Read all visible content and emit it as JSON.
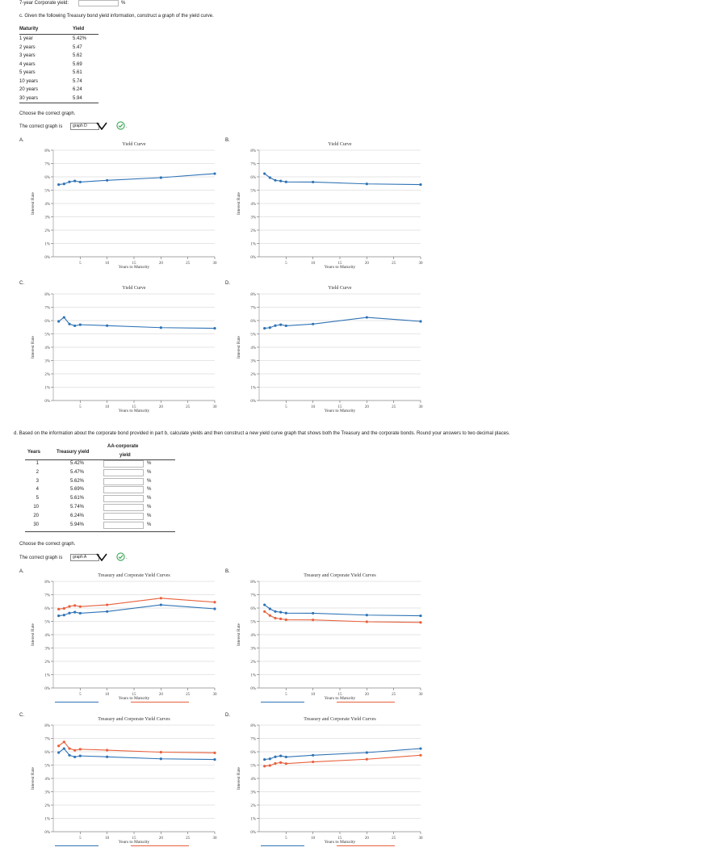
{
  "top": {
    "label": "7-year Corporate yield:",
    "value": "",
    "unit": "%"
  },
  "part_c": {
    "prompt": "c. Given the following Treasury bond yield information, construct a graph of the yield curve.",
    "table_headers": [
      "Maturity",
      "Yield"
    ],
    "rows": [
      {
        "maturity": "1 year",
        "yield": "5.42%"
      },
      {
        "maturity": "2 years",
        "yield": "5.47"
      },
      {
        "maturity": "3 years",
        "yield": "5.62"
      },
      {
        "maturity": "4 years",
        "yield": "5.69"
      },
      {
        "maturity": "5 years",
        "yield": "5.61"
      },
      {
        "maturity": "10 years",
        "yield": "5.74"
      },
      {
        "maturity": "20 years",
        "yield": "6.24"
      },
      {
        "maturity": "30 years",
        "yield": "5.94"
      }
    ],
    "choose_text": "Choose the correct graph.",
    "answer_label": "The correct graph is",
    "answer_value": "graph D",
    "options": [
      "A.",
      "B.",
      "C.",
      "D."
    ]
  },
  "part_d": {
    "prompt": "d. Based on the information about the corporate bond provided in part b, calculate yields and then construct a new yield curve graph that shows both the Treasury and the corporate bonds. Round your answers to two decimal places.",
    "headers": [
      "Years",
      "Treasury yield",
      "AA-corporate",
      "yield"
    ],
    "rows": [
      {
        "years": "1",
        "treasury": "5.42%",
        "corp": "",
        "unit": "%"
      },
      {
        "years": "2",
        "treasury": "5.47%",
        "corp": "",
        "unit": "%"
      },
      {
        "years": "3",
        "treasury": "5.62%",
        "corp": "",
        "unit": "%"
      },
      {
        "years": "4",
        "treasury": "5.69%",
        "corp": "",
        "unit": "%"
      },
      {
        "years": "5",
        "treasury": "5.61%",
        "corp": "",
        "unit": "%"
      },
      {
        "years": "10",
        "treasury": "5.74%",
        "corp": "",
        "unit": "%"
      },
      {
        "years": "20",
        "treasury": "6.24%",
        "corp": "",
        "unit": "%"
      },
      {
        "years": "30",
        "treasury": "5.94%",
        "corp": "",
        "unit": "%"
      }
    ],
    "choose_text": "Choose the correct graph.",
    "answer_label": "The correct graph is",
    "answer_value": "graph A",
    "options": [
      "A.",
      "B.",
      "C.",
      "D."
    ]
  },
  "colors": {
    "treasury": "#2f73b5",
    "corporate": "#e8603c",
    "grid": "#dedede",
    "check": "#3aa655"
  },
  "chart_data": [
    {
      "id": "c-A",
      "type": "line",
      "title": "Yield Curve",
      "xlabel": "Years to Maturity",
      "ylabel": "Interest Rate",
      "xlim": [
        0,
        30
      ],
      "ylim": [
        0,
        8
      ],
      "xticks": [
        "5",
        "10",
        "15",
        "20",
        "25",
        "30"
      ],
      "yticks": [
        "0%",
        "1%",
        "2%",
        "3%",
        "4%",
        "5%",
        "6%",
        "7%",
        "8%"
      ],
      "x": [
        1,
        2,
        3,
        4,
        5,
        10,
        20,
        30
      ],
      "series": [
        {
          "values": [
            5.42,
            5.47,
            5.62,
            5.69,
            5.61,
            5.74,
            5.94,
            6.24
          ]
        }
      ]
    },
    {
      "id": "c-B",
      "type": "line",
      "title": "Yield Curve",
      "xlabel": "Years to Maturity",
      "ylabel": "Interest Rate",
      "xlim": [
        0,
        30
      ],
      "ylim": [
        0,
        8
      ],
      "xticks": [
        "5",
        "10",
        "15",
        "20",
        "25",
        "30"
      ],
      "yticks": [
        "0%",
        "1%",
        "2%",
        "3%",
        "4%",
        "5%",
        "6%",
        "7%",
        "8%"
      ],
      "x": [
        1,
        2,
        3,
        4,
        5,
        10,
        20,
        30
      ],
      "series": [
        {
          "values": [
            6.24,
            5.94,
            5.74,
            5.69,
            5.62,
            5.61,
            5.47,
            5.42
          ]
        }
      ]
    },
    {
      "id": "c-C",
      "type": "line",
      "title": "Yield Curve",
      "xlabel": "Years to Maturity",
      "ylabel": "Interest Rate",
      "xlim": [
        0,
        30
      ],
      "ylim": [
        0,
        8
      ],
      "xticks": [
        "5",
        "10",
        "15",
        "20",
        "25",
        "30"
      ],
      "yticks": [
        "0%",
        "1%",
        "2%",
        "3%",
        "4%",
        "5%",
        "6%",
        "7%",
        "8%"
      ],
      "x": [
        1,
        2,
        3,
        4,
        5,
        10,
        20,
        30
      ],
      "series": [
        {
          "values": [
            5.94,
            6.24,
            5.74,
            5.61,
            5.69,
            5.62,
            5.47,
            5.42
          ]
        }
      ]
    },
    {
      "id": "c-D",
      "type": "line",
      "title": "Yield Curve",
      "xlabel": "Years to Maturity",
      "ylabel": "Interest Rate",
      "xlim": [
        0,
        30
      ],
      "ylim": [
        0,
        8
      ],
      "xticks": [
        "5",
        "10",
        "15",
        "20",
        "25",
        "30"
      ],
      "yticks": [
        "0%",
        "1%",
        "2%",
        "3%",
        "4%",
        "5%",
        "6%",
        "7%",
        "8%"
      ],
      "x": [
        1,
        2,
        3,
        4,
        5,
        10,
        20,
        30
      ],
      "series": [
        {
          "values": [
            5.42,
            5.47,
            5.62,
            5.69,
            5.61,
            5.74,
            6.24,
            5.94
          ]
        }
      ]
    },
    {
      "id": "d-A",
      "type": "line",
      "title": "Treasury and Corporate Yield Curves",
      "xlabel": "Years to Maturity",
      "ylabel": "Interest Rate",
      "xlim": [
        0,
        30
      ],
      "ylim": [
        0,
        8
      ],
      "xticks": [
        "5",
        "10",
        "15",
        "20",
        "25",
        "30"
      ],
      "yticks": [
        "0%",
        "1%",
        "2%",
        "3%",
        "4%",
        "5%",
        "6%",
        "7%",
        "8%"
      ],
      "x": [
        1,
        2,
        3,
        4,
        5,
        10,
        20,
        30
      ],
      "series": [
        {
          "name": "Treasury bond",
          "values": [
            5.42,
            5.47,
            5.62,
            5.69,
            5.61,
            5.74,
            6.24,
            5.94
          ]
        },
        {
          "name": "Corporate bond",
          "values": [
            5.92,
            5.97,
            6.12,
            6.19,
            6.11,
            6.24,
            6.74,
            6.44
          ]
        }
      ]
    },
    {
      "id": "d-B",
      "type": "line",
      "title": "Treasury and Corporate Yield Curves",
      "xlabel": "Years to Maturity",
      "ylabel": "Interest Rate",
      "xlim": [
        0,
        30
      ],
      "ylim": [
        0,
        8
      ],
      "xticks": [
        "5",
        "10",
        "15",
        "20",
        "25",
        "30"
      ],
      "yticks": [
        "0%",
        "1%",
        "2%",
        "3%",
        "4%",
        "5%",
        "6%",
        "7%",
        "8%"
      ],
      "x": [
        1,
        2,
        3,
        4,
        5,
        10,
        20,
        30
      ],
      "series": [
        {
          "name": "Treasury bond",
          "values": [
            6.24,
            5.94,
            5.74,
            5.69,
            5.62,
            5.61,
            5.47,
            5.42
          ]
        },
        {
          "name": "Corporate bond",
          "values": [
            5.74,
            5.44,
            5.24,
            5.19,
            5.12,
            5.11,
            4.97,
            4.92
          ]
        }
      ]
    },
    {
      "id": "d-C",
      "type": "line",
      "title": "Treasury and Corporate Yield Curves",
      "xlabel": "Years to Maturity",
      "ylabel": "Interest Rate",
      "xlim": [
        0,
        30
      ],
      "ylim": [
        0,
        8
      ],
      "xticks": [
        "5",
        "10",
        "15",
        "20",
        "25",
        "30"
      ],
      "yticks": [
        "0%",
        "1%",
        "2%",
        "3%",
        "4%",
        "5%",
        "6%",
        "7%",
        "8%"
      ],
      "x": [
        1,
        2,
        3,
        4,
        5,
        10,
        20,
        30
      ],
      "series": [
        {
          "name": "Treasury bond",
          "values": [
            5.94,
            6.24,
            5.74,
            5.61,
            5.69,
            5.62,
            5.47,
            5.42
          ]
        },
        {
          "name": "Corporate bond",
          "values": [
            6.44,
            6.74,
            6.24,
            6.11,
            6.19,
            6.12,
            5.97,
            5.92
          ]
        }
      ]
    },
    {
      "id": "d-D",
      "type": "line",
      "title": "Treasury and Corporate Yield Curves",
      "xlabel": "Years to Maturity",
      "ylabel": "Interest Rate",
      "xlim": [
        0,
        30
      ],
      "ylim": [
        0,
        8
      ],
      "xticks": [
        "5",
        "10",
        "15",
        "20",
        "25",
        "30"
      ],
      "yticks": [
        "0%",
        "1%",
        "2%",
        "3%",
        "4%",
        "5%",
        "6%",
        "7%",
        "8%"
      ],
      "x": [
        1,
        2,
        3,
        4,
        5,
        10,
        20,
        30
      ],
      "series": [
        {
          "name": "Treasury bond",
          "values": [
            5.42,
            5.47,
            5.62,
            5.69,
            5.61,
            5.74,
            5.94,
            6.24
          ]
        },
        {
          "name": "Corporate bond",
          "values": [
            4.92,
            4.97,
            5.12,
            5.19,
            5.11,
            5.24,
            5.44,
            5.74
          ]
        }
      ]
    }
  ]
}
